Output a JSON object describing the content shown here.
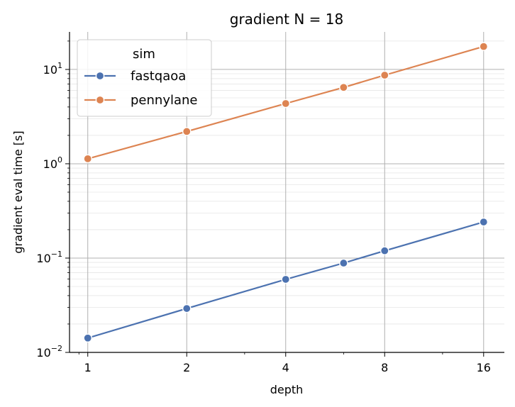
{
  "chart_data": {
    "type": "line",
    "title": "gradient N = 18",
    "xlabel": "depth",
    "ylabel": "gradient eval time [s]",
    "x_scale": "log2",
    "y_scale": "log10",
    "xlim": [
      0.88,
      18.5
    ],
    "ylim": [
      0.01,
      25
    ],
    "x_ticks": [
      1,
      2,
      4,
      8,
      16
    ],
    "x_tick_labels": [
      "1",
      "2",
      "4",
      "8",
      "16"
    ],
    "y_ticks": [
      0.01,
      0.1,
      1,
      10
    ],
    "y_tick_labels": [
      {
        "base": "10",
        "exp": "−2"
      },
      {
        "base": "10",
        "exp": "−1"
      },
      {
        "base": "10",
        "exp": "0"
      },
      {
        "base": "10",
        "exp": "1"
      }
    ],
    "grid": true,
    "legend": {
      "title": "sim",
      "placement": "top-left"
    },
    "x": [
      1,
      2,
      4,
      6,
      8,
      16
    ],
    "series": [
      {
        "name": "fastqaoa",
        "color": "#4c72b0",
        "values": [
          0.0142,
          0.0292,
          0.0595,
          0.0885,
          0.1195,
          0.2413
        ]
      },
      {
        "name": "pennylane",
        "color": "#dd8452",
        "values": [
          1.13,
          2.2,
          4.35,
          6.45,
          8.7,
          17.5
        ]
      }
    ]
  }
}
